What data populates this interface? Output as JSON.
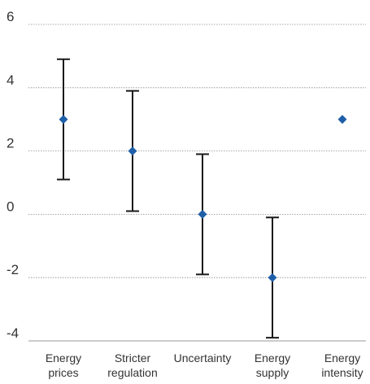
{
  "chart_data": {
    "type": "scatter",
    "title": "",
    "xlabel": "",
    "ylabel": "",
    "ylim": [
      -4,
      6
    ],
    "yticks": [
      6,
      4,
      2,
      0,
      -2,
      -4
    ],
    "ytick_labels": [
      "6",
      "4",
      "2",
      "0",
      "-2",
      "-4"
    ],
    "grid": true,
    "categories": [
      [
        "Energy",
        "prices"
      ],
      [
        "Stricter",
        "regulation"
      ],
      [
        "Uncertainty"
      ],
      [
        "Energy",
        "supply"
      ],
      [
        "Energy",
        "intensity"
      ]
    ],
    "values": [
      3.0,
      2.0,
      0.0,
      -2.0,
      3.0
    ],
    "error_low": [
      1.1,
      0.1,
      -1.9,
      -3.9,
      null
    ],
    "error_high": [
      4.9,
      3.9,
      1.9,
      -0.1,
      null
    ],
    "marker": "diamond",
    "marker_color": "#1f5fa8",
    "errorbar_color": "#1a1a1a"
  }
}
